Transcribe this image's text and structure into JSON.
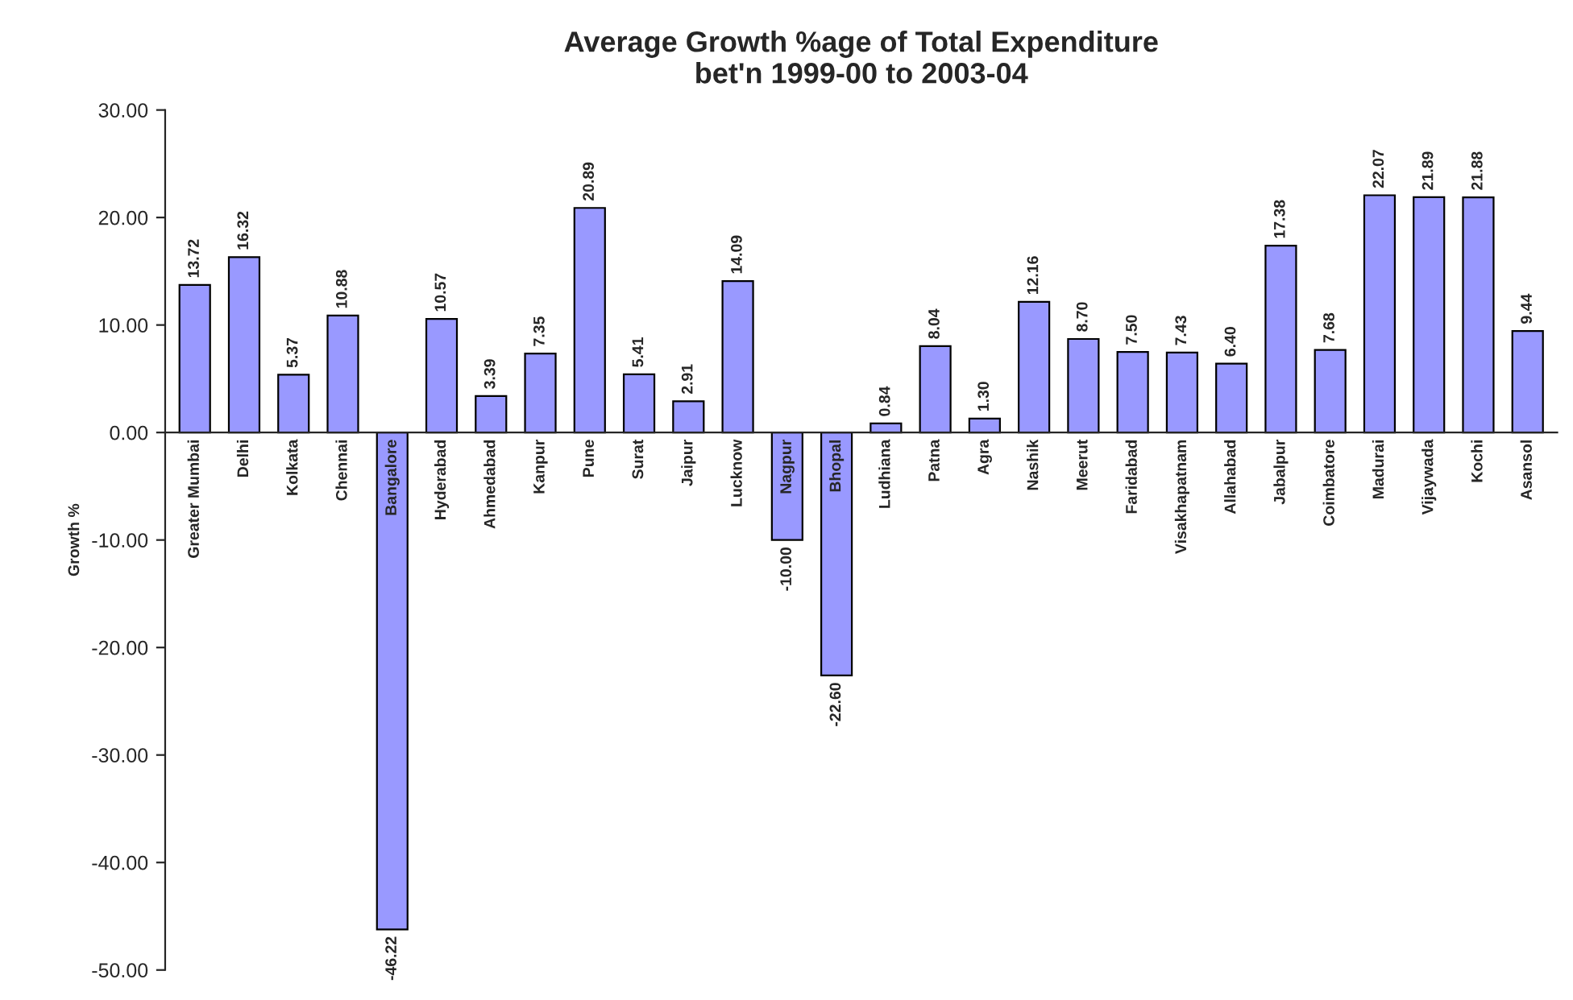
{
  "chart_data": {
    "type": "bar",
    "title": "Average Growth %age of Total Expenditure\nbet'n 1999-00 to 2003-04",
    "ylabel": "Growth %",
    "categories": [
      "Greater Mumbai",
      "Delhi",
      "Kolkata",
      "Chennai",
      "Bangalore",
      "Hyderabad",
      "Ahmedabad",
      "Kanpur",
      "Pune",
      "Surat",
      "Jaipur",
      "Lucknow",
      "Nagpur",
      "Bhopal",
      "Ludhiana",
      "Patna",
      "Agra",
      "Nashik",
      "Meerut",
      "Faridabad",
      "Visakhapatnam",
      "Allahabad",
      "Jabalpur",
      "Coimbatore",
      "Madurai",
      "Vijaywada",
      "Kochi",
      "Asansol"
    ],
    "values": [
      13.72,
      16.32,
      5.37,
      10.88,
      -46.22,
      10.57,
      3.39,
      7.35,
      20.89,
      5.41,
      2.91,
      14.09,
      -10.0,
      -22.6,
      0.84,
      8.04,
      1.3,
      12.16,
      8.7,
      7.5,
      7.43,
      6.4,
      17.38,
      7.68,
      22.07,
      21.89,
      21.88,
      9.44
    ],
    "value_labels": [
      "13.72",
      "16.32",
      "5.37",
      "10.88",
      "-46.22",
      "10.57",
      "3.39",
      "7.35",
      "20.89",
      "5.41",
      "2.91",
      "14.09",
      "-10.00",
      "-22.60",
      "0.84",
      "8.04",
      "1.30",
      "12.16",
      "8.70",
      "7.50",
      "7.43",
      "6.40",
      "17.38",
      "7.68",
      "22.07",
      "21.89",
      "21.88",
      "9.44"
    ],
    "color": "#9999ff",
    "ylim": [
      -50,
      30
    ],
    "yticks": [
      {
        "value": -50,
        "label": "-50.00"
      },
      {
        "value": -40,
        "label": "-40.00"
      },
      {
        "value": -30,
        "label": "-30.00"
      },
      {
        "value": -20,
        "label": "-20.00"
      },
      {
        "value": -10,
        "label": "-10.00"
      },
      {
        "value": 0,
        "label": "0.00"
      },
      {
        "value": 10,
        "label": "10.00"
      },
      {
        "value": 20,
        "label": "20.00"
      },
      {
        "value": 30,
        "label": "30.00"
      }
    ],
    "grid": false
  }
}
